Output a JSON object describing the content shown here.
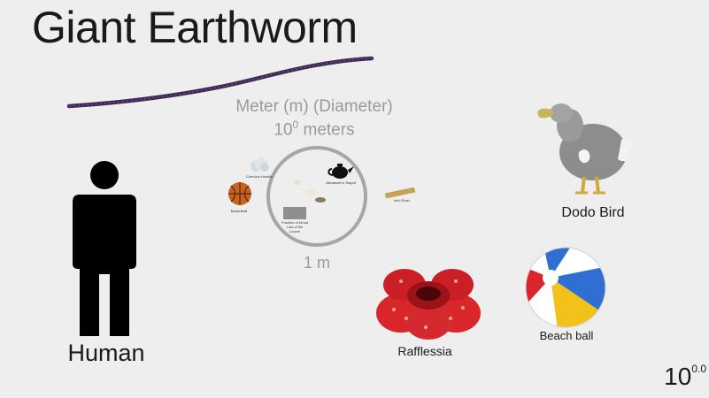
{
  "title": "Giant Earthworm",
  "unit": {
    "name": "Meter (m) (Diameter)",
    "power_base": "10",
    "power_exp": "0",
    "power_suffix": " meters",
    "caption": "1 m"
  },
  "circle_items": {
    "basketball": "Basketball",
    "teapot": "Alexander's Teapot",
    "ruler": "Inch Ruler",
    "cloud": "Cumulus Humilis",
    "grey_box": "Fraction of Mona Lisa of the Louvre"
  },
  "objects": {
    "human": "Human",
    "dodo": "Dodo Bird",
    "rafflesia": "Rafflessia",
    "beach_ball": "Beach ball"
  },
  "scale": {
    "base": "10",
    "exponent": "0.0"
  },
  "colors": {
    "background": "#eeeeee",
    "worm": "#3d2a55",
    "muted_text": "#9a9a9a",
    "rafflesia": "#d8262b",
    "human": "#000000"
  }
}
